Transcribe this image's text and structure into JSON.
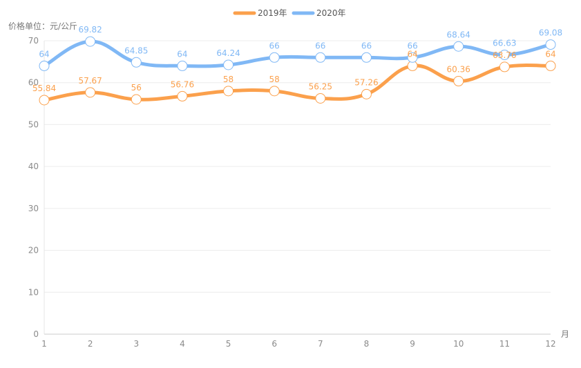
{
  "chart_data": {
    "type": "line",
    "title": "",
    "ylabel": "价格单位：元/公斤",
    "xlabel": "月",
    "categories": [
      "1",
      "2",
      "3",
      "4",
      "5",
      "6",
      "7",
      "8",
      "9",
      "10",
      "11",
      "12"
    ],
    "ylim": [
      0,
      70
    ],
    "yticks": [
      0,
      10,
      20,
      30,
      40,
      50,
      60,
      70
    ],
    "grid": true,
    "smooth": true,
    "legend_position": "top",
    "series": [
      {
        "name": "2019年",
        "color": "#fba04c",
        "values": [
          55.84,
          57.67,
          56,
          56.76,
          58,
          58,
          56.25,
          57.26,
          64,
          60.36,
          63.76,
          64
        ]
      },
      {
        "name": "2020年",
        "color": "#80b8f5",
        "values": [
          64,
          69.82,
          64.85,
          64,
          64.24,
          66,
          66,
          66,
          66,
          68.64,
          66.63,
          69.08
        ]
      }
    ]
  }
}
